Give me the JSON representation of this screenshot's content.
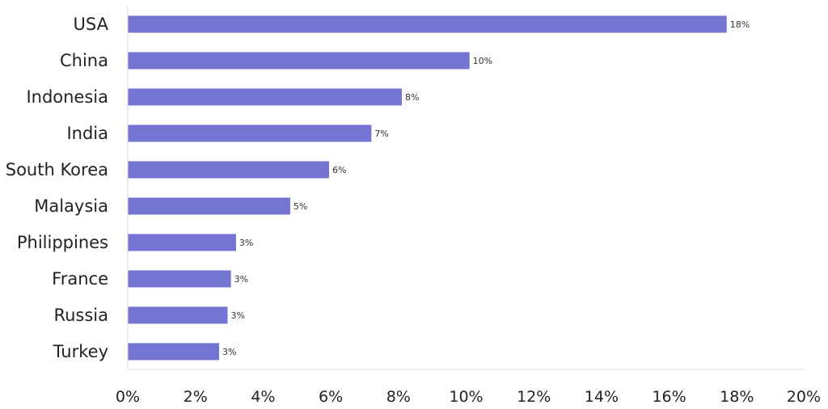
{
  "chart_data": {
    "type": "bar",
    "orientation": "horizontal",
    "categories": [
      "USA",
      "China",
      "Indonesia",
      "India",
      "South Korea",
      "Malaysia",
      "Philippines",
      "France",
      "Russia",
      "Turkey"
    ],
    "values": [
      17.7,
      10.1,
      8.1,
      7.2,
      5.95,
      4.8,
      3.2,
      3.05,
      2.95,
      2.7
    ],
    "data_labels": [
      "18%",
      "10%",
      "8%",
      "7%",
      "6%",
      "5%",
      "3%",
      "3%",
      "3%",
      "3%"
    ],
    "xlim": [
      0,
      20
    ],
    "x_ticks": [
      0,
      2,
      4,
      6,
      8,
      10,
      12,
      14,
      16,
      18,
      20
    ],
    "x_tick_labels": [
      "0%",
      "2%",
      "4%",
      "6%",
      "8%",
      "10%",
      "12%",
      "14%",
      "16%",
      "18%",
      "20%"
    ],
    "title": "",
    "xlabel": "",
    "ylabel": "",
    "grid": false,
    "legend": "none",
    "colors": {
      "bar": "#7474d3",
      "axis": "#d9d9d9",
      "text": "#222222"
    }
  }
}
